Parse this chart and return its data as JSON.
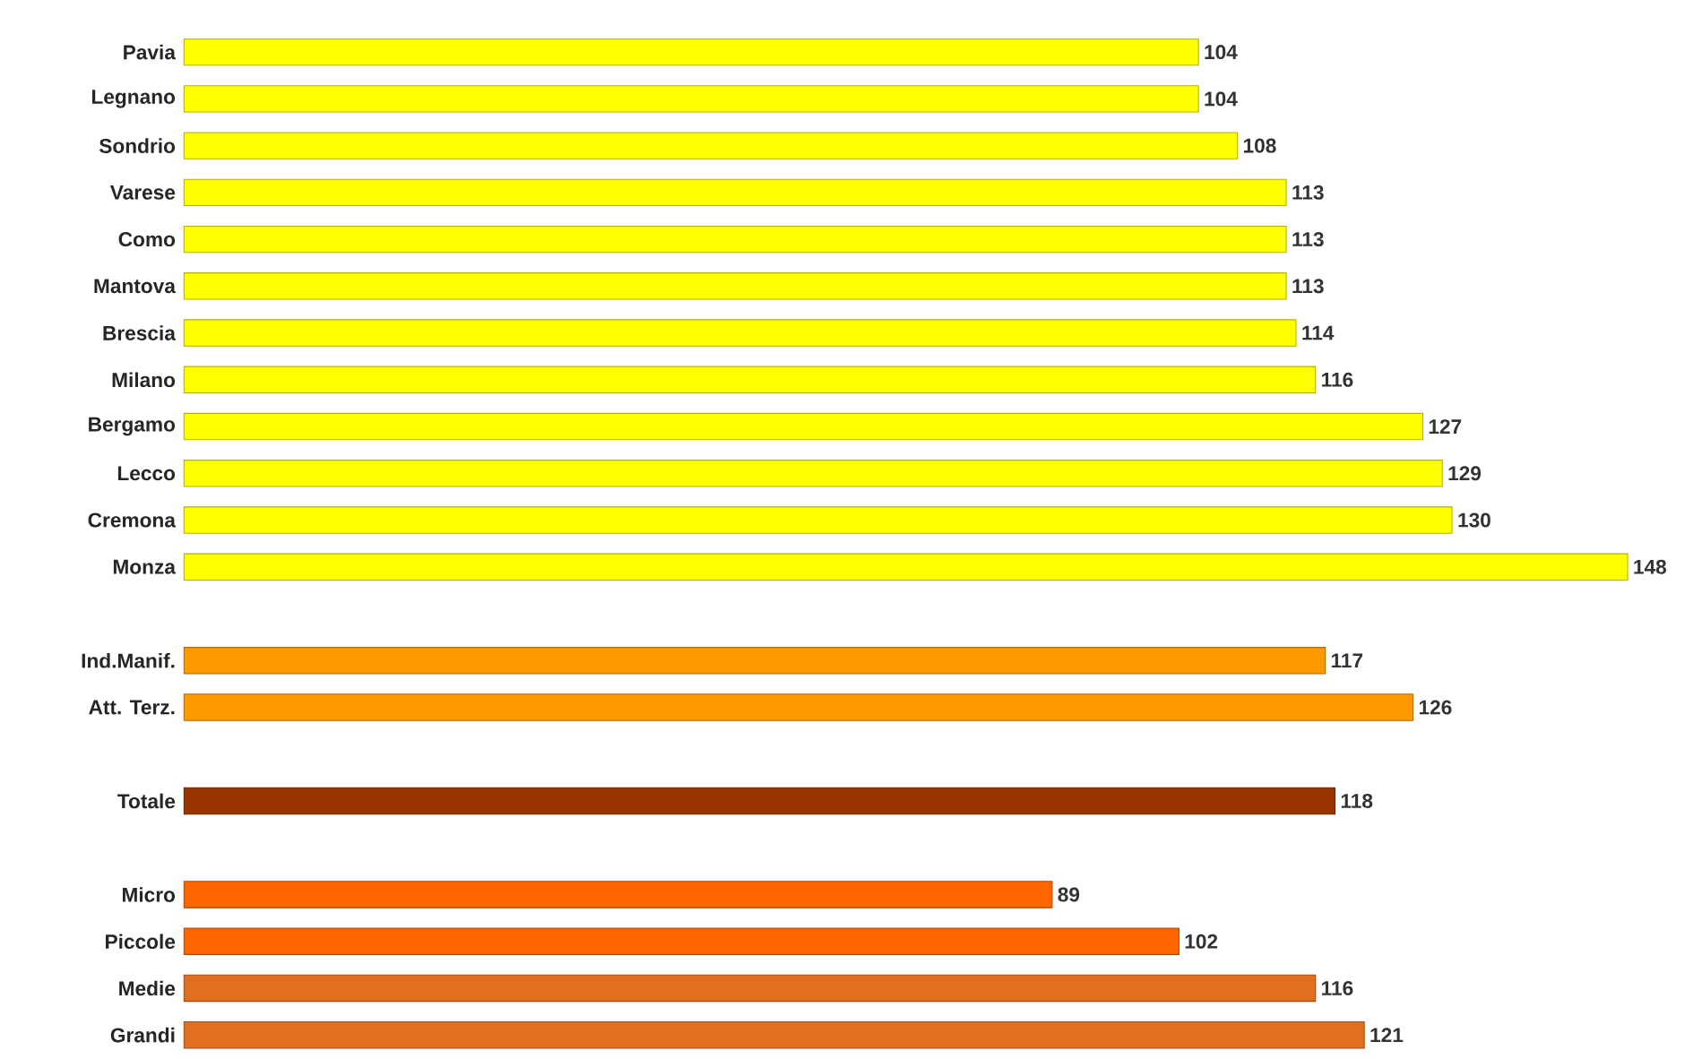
{
  "chart_data": {
    "type": "bar",
    "orientation": "horizontal",
    "data_labels": true,
    "categories": [
      "Pavia",
      "Legnano",
      "Sondrio",
      "Varese",
      "Como",
      "Mantova",
      "Brescia",
      "Milano",
      "Bergamo",
      "Lecco",
      "Cremona",
      "Monza",
      null,
      "Ind.Manif.",
      "Att. Terz.",
      null,
      "Totale",
      null,
      "Micro",
      "Piccole",
      "Medie",
      "Grandi"
    ],
    "values": [
      104,
      104,
      108,
      113,
      113,
      113,
      114,
      116,
      127,
      129,
      130,
      148,
      null,
      117,
      126,
      null,
      118,
      null,
      89,
      102,
      116,
      121
    ],
    "colors": [
      "#ffff00",
      "#ffff00",
      "#ffff00",
      "#ffff00",
      "#ffff00",
      "#ffff00",
      "#ffff00",
      "#ffff00",
      "#ffff00",
      "#ffff00",
      "#ffff00",
      "#ffff00",
      null,
      "#ff9900",
      "#ff9900",
      null,
      "#993300",
      null,
      "#ff6600",
      "#ff6600",
      "#e0701f",
      "#e0701f"
    ]
  }
}
